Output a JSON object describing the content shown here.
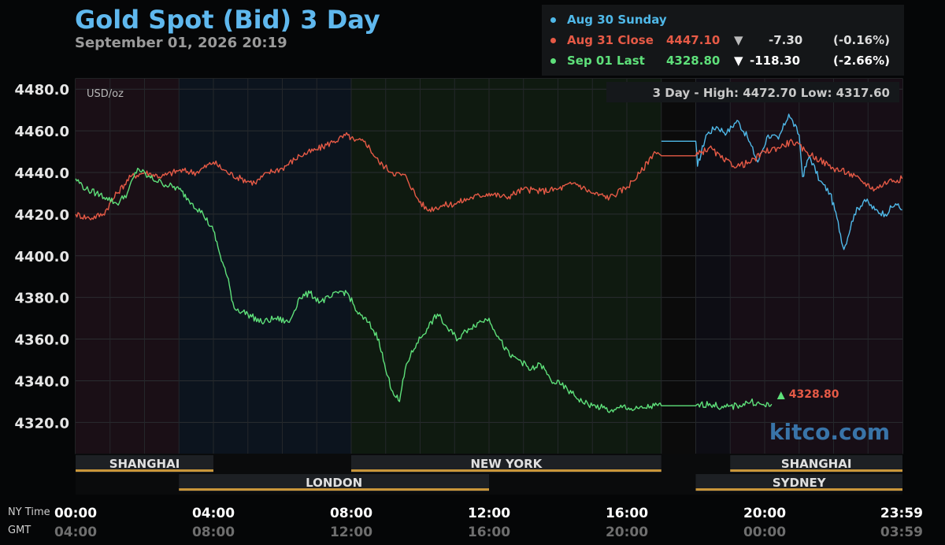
{
  "header": {
    "title": "Gold Spot (Bid) 3 Day",
    "timestamp": "September 01, 2026 20:19"
  },
  "legend": {
    "rows": [
      {
        "label": "Aug 30 Sunday",
        "price": "",
        "arrow": "",
        "change": "",
        "pct": "",
        "color": "#4fb8e8"
      },
      {
        "label": "Aug 31 Close",
        "price": "4447.10",
        "arrow": "▼",
        "change": "-7.30",
        "pct": "(-0.16%)",
        "color": "#e65a46"
      },
      {
        "label": "Sep 01 Last",
        "price": "4328.80",
        "arrow": "▼",
        "change": "-118.30",
        "pct": "(-2.66%)",
        "color": "#5ee07a"
      }
    ]
  },
  "chart_data": {
    "type": "line",
    "unit_label": "USD/oz",
    "range_text": "3 Day - High: 4472.70  Low: 4317.60",
    "ylim": [
      4305,
      4485
    ],
    "yticks": [
      4320.0,
      4340.0,
      4360.0,
      4380.0,
      4400.0,
      4420.0,
      4440.0,
      4460.0,
      4480.0
    ],
    "xlim": [
      0,
      24
    ],
    "x_row_labels": [
      "NY Time",
      "GMT"
    ],
    "xticks_ny": [
      "00:00",
      "04:00",
      "08:00",
      "12:00",
      "16:00",
      "20:00",
      "23:59"
    ],
    "xticks_gmt": [
      "04:00",
      "08:00",
      "12:00",
      "16:00",
      "20:00",
      "00:00",
      "03:59"
    ],
    "sessions": [
      {
        "name": "SHANGHAI",
        "start": 0,
        "end": 4,
        "row": 1
      },
      {
        "name": "NEW YORK",
        "start": 8,
        "end": 17,
        "row": 1
      },
      {
        "name": "SHANGHAI",
        "start": 19,
        "end": 24,
        "row": 1
      },
      {
        "name": "LONDON",
        "start": 3,
        "end": 12,
        "row": 2
      },
      {
        "name": "SYDNEY",
        "start": 18,
        "end": 24,
        "row": 2
      }
    ],
    "last_label": "4328.80",
    "watermark": "kitco.com",
    "series": [
      {
        "name": "Aug 30 Sunday",
        "color": "#4fb8e8",
        "x": [
          17,
          18,
          18.05,
          18.3,
          18.6,
          18.9,
          19.2,
          19.5,
          19.8,
          20.1,
          20.4,
          20.7,
          21.0,
          21.1,
          21.3,
          21.6,
          21.9,
          22.1,
          22.3,
          22.6,
          22.9,
          23.2,
          23.5,
          23.8,
          23.99
        ],
        "y": [
          4455,
          4455,
          4443,
          4458,
          4462,
          4459,
          4465,
          4457,
          4445,
          4458,
          4456,
          4468,
          4458,
          4438,
          4448,
          4436,
          4430,
          4418,
          4403,
          4420,
          4427,
          4422,
          4420,
          4425,
          4422
        ]
      },
      {
        "name": "Aug 31 Close",
        "color": "#e65a46",
        "x": [
          0,
          0.4,
          0.8,
          1.2,
          1.6,
          2.0,
          2.5,
          3.0,
          3.5,
          4.0,
          4.4,
          4.8,
          5.2,
          5.6,
          6.0,
          6.5,
          7.0,
          7.5,
          7.9,
          8.1,
          8.4,
          8.8,
          9.2,
          9.6,
          9.9,
          10.2,
          10.6,
          11.0,
          11.5,
          12.0,
          12.5,
          13.0,
          13.5,
          14.0,
          14.5,
          15.0,
          15.5,
          16.0,
          16.4,
          16.8,
          17,
          18,
          18.4,
          18.8,
          19.2,
          19.6,
          20.0,
          20.4,
          20.8,
          21.2,
          21.6,
          22.0,
          22.4,
          22.8,
          23.2,
          23.6,
          23.99
        ],
        "y": [
          4420,
          4418,
          4420,
          4430,
          4438,
          4440,
          4438,
          4441,
          4440,
          4445,
          4440,
          4437,
          4435,
          4440,
          4442,
          4448,
          4451,
          4455,
          4458,
          4455,
          4455,
          4445,
          4440,
          4438,
          4428,
          4422,
          4424,
          4425,
          4428,
          4430,
          4428,
          4432,
          4431,
          4432,
          4435,
          4430,
          4428,
          4433,
          4440,
          4450,
          4448,
          4448,
          4452,
          4446,
          4443,
          4445,
          4450,
          4452,
          4455,
          4450,
          4446,
          4442,
          4440,
          4436,
          4432,
          4436,
          4437
        ]
      },
      {
        "name": "Sep 01 Last",
        "color": "#5ee07a",
        "x": [
          0,
          0.3,
          0.6,
          0.9,
          1.2,
          1.5,
          1.8,
          2.1,
          2.5,
          3.0,
          3.4,
          3.7,
          4.0,
          4.2,
          4.4,
          4.6,
          5.0,
          5.4,
          5.8,
          6.2,
          6.5,
          6.8,
          7.1,
          7.4,
          7.7,
          7.9,
          8.2,
          8.5,
          8.8,
          9.0,
          9.2,
          9.4,
          9.6,
          9.9,
          10.2,
          10.5,
          10.8,
          11.1,
          11.4,
          11.7,
          12.0,
          12.3,
          12.6,
          12.9,
          13.2,
          13.5,
          13.8,
          14.1,
          14.4,
          14.7,
          15.0,
          15.3,
          15.6,
          15.9,
          16.2,
          16.5,
          16.8,
          17,
          18,
          18.4,
          18.8,
          19.2,
          19.6,
          20.0,
          20.2
        ],
        "y": [
          4437,
          4432,
          4430,
          4428,
          4425,
          4430,
          4442,
          4438,
          4435,
          4432,
          4425,
          4420,
          4412,
          4400,
          4390,
          4375,
          4372,
          4368,
          4370,
          4368,
          4380,
          4382,
          4378,
          4380,
          4383,
          4382,
          4372,
          4368,
          4360,
          4345,
          4335,
          4330,
          4348,
          4358,
          4365,
          4372,
          4365,
          4360,
          4365,
          4368,
          4370,
          4360,
          4352,
          4350,
          4345,
          4348,
          4340,
          4338,
          4334,
          4330,
          4328,
          4327,
          4325,
          4328,
          4326,
          4327,
          4328,
          4328,
          4328,
          4329,
          4327,
          4328,
          4330,
          4328,
          4328.8
        ]
      }
    ]
  }
}
